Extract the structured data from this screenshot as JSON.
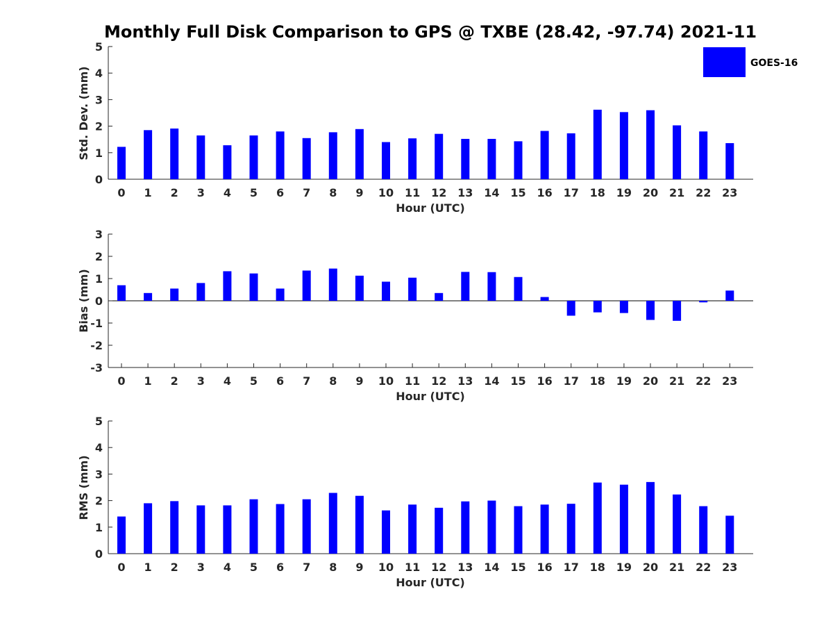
{
  "figure_title": "Monthly Full Disk Comparison to GPS @ TXBE (28.42, -97.74) 2021-11",
  "legend": {
    "label": "GOES-16",
    "color": "#0000ff"
  },
  "chart_data": [
    {
      "type": "bar",
      "ylabel": "Std. Dev. (mm)",
      "xlabel": "Hour (UTC)",
      "ylim": [
        0,
        5
      ],
      "yticks": [
        "0",
        "1",
        "2",
        "3",
        "4",
        "5"
      ],
      "categories": [
        "0",
        "1",
        "2",
        "3",
        "4",
        "5",
        "6",
        "7",
        "8",
        "9",
        "10",
        "11",
        "12",
        "13",
        "14",
        "15",
        "16",
        "17",
        "18",
        "19",
        "20",
        "21",
        "22",
        "23"
      ],
      "series": [
        {
          "name": "GOES-16",
          "color": "#0000ff",
          "values": [
            1.22,
            1.85,
            1.91,
            1.65,
            1.28,
            1.65,
            1.8,
            1.55,
            1.77,
            1.89,
            1.4,
            1.54,
            1.71,
            1.52,
            1.52,
            1.43,
            1.82,
            1.73,
            2.62,
            2.53,
            2.6,
            2.03,
            1.8,
            1.36
          ]
        }
      ]
    },
    {
      "type": "bar",
      "ylabel": "Bias (mm)",
      "xlabel": "Hour (UTC)",
      "ylim": [
        -3,
        3
      ],
      "yticks": [
        "-3",
        "-2",
        "-1",
        "0",
        "1",
        "2",
        "3"
      ],
      "zero_line": true,
      "categories": [
        "0",
        "1",
        "2",
        "3",
        "4",
        "5",
        "6",
        "7",
        "8",
        "9",
        "10",
        "11",
        "12",
        "13",
        "14",
        "15",
        "16",
        "17",
        "18",
        "19",
        "20",
        "21",
        "22",
        "23"
      ],
      "series": [
        {
          "name": "GOES-16",
          "color": "#0000ff",
          "values": [
            0.7,
            0.35,
            0.55,
            0.8,
            1.33,
            1.23,
            0.55,
            1.36,
            1.45,
            1.13,
            0.86,
            1.04,
            0.35,
            1.3,
            1.29,
            1.07,
            0.17,
            -0.67,
            -0.52,
            -0.55,
            -0.86,
            -0.9,
            -0.07,
            0.46
          ]
        }
      ]
    },
    {
      "type": "bar",
      "ylabel": "RMS (mm)",
      "xlabel": "Hour (UTC)",
      "ylim": [
        0,
        5
      ],
      "yticks": [
        "0",
        "1",
        "2",
        "3",
        "4",
        "5"
      ],
      "categories": [
        "0",
        "1",
        "2",
        "3",
        "4",
        "5",
        "6",
        "7",
        "8",
        "9",
        "10",
        "11",
        "12",
        "13",
        "14",
        "15",
        "16",
        "17",
        "18",
        "19",
        "20",
        "21",
        "22",
        "23"
      ],
      "series": [
        {
          "name": "GOES-16",
          "color": "#0000ff",
          "values": [
            1.4,
            1.9,
            1.98,
            1.82,
            1.82,
            2.05,
            1.87,
            2.05,
            2.29,
            2.18,
            1.63,
            1.85,
            1.73,
            1.97,
            2.0,
            1.79,
            1.85,
            1.88,
            2.68,
            2.6,
            2.7,
            2.23,
            1.79,
            1.43
          ]
        }
      ]
    }
  ]
}
